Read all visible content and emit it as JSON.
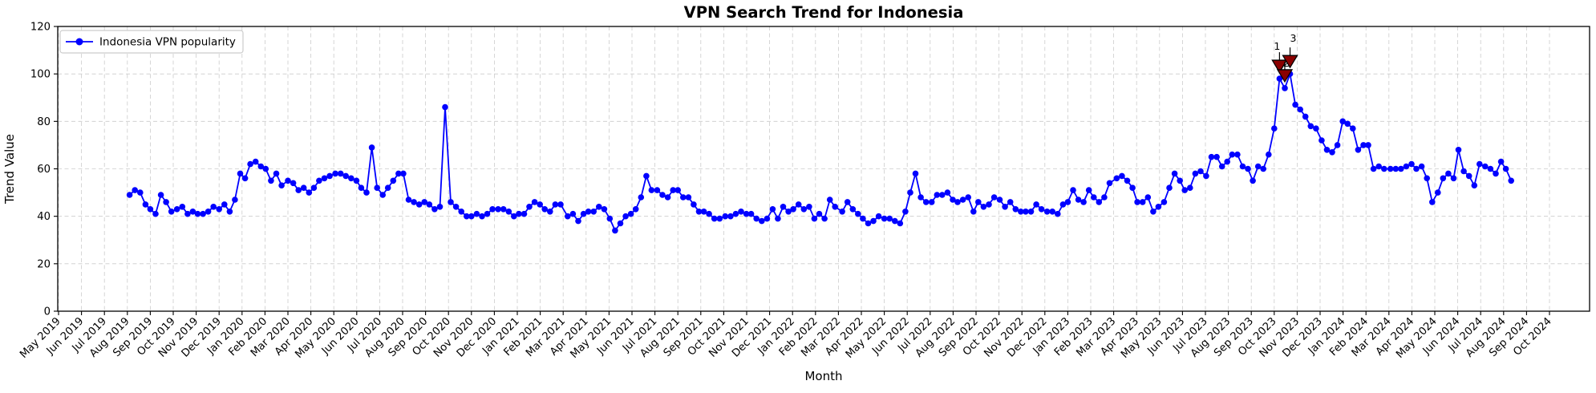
{
  "figure": {
    "title": "VPN Search Trend for Indonesia",
    "background": "#ffffff"
  },
  "chart_data": {
    "type": "line",
    "title": "VPN Search Trend for Indonesia",
    "xlabel": "Month",
    "ylabel": "Trend Value",
    "ylim": [
      0,
      120
    ],
    "y_ticks": [
      0,
      20,
      40,
      60,
      80,
      100,
      120
    ],
    "grid": true,
    "grid_style": "dashed",
    "x_tick_labels": [
      "May 2019",
      "Jun 2019",
      "Jul 2019",
      "Aug 2019",
      "Sep 2019",
      "Oct 2019",
      "Nov 2019",
      "Dec 2019",
      "Jan 2020",
      "Feb 2020",
      "Mar 2020",
      "Apr 2020",
      "May 2020",
      "Jun 2020",
      "Jul 2020",
      "Aug 2020",
      "Sep 2020",
      "Oct 2020",
      "Nov 2020",
      "Dec 2020",
      "Jan 2021",
      "Feb 2021",
      "Mar 2021",
      "Apr 2021",
      "May 2021",
      "Jun 2021",
      "Jul 2021",
      "Aug 2021",
      "Sep 2021",
      "Oct 2021",
      "Nov 2021",
      "Dec 2021",
      "Jan 2022",
      "Feb 2022",
      "Mar 2022",
      "Apr 2022",
      "May 2022",
      "Jun 2022",
      "Jul 2022",
      "Aug 2022",
      "Sep 2022",
      "Oct 2022",
      "Nov 2022",
      "Dec 2022",
      "Jan 2023",
      "Feb 2023",
      "Mar 2023",
      "Apr 2023",
      "May 2023",
      "Jun 2023",
      "Jul 2023",
      "Aug 2023",
      "Sep 2023",
      "Oct 2023",
      "Nov 2023",
      "Dec 2023",
      "Jan 2024",
      "Feb 2024",
      "Mar 2024",
      "Apr 2024",
      "May 2024",
      "Jun 2024",
      "Jul 2024",
      "Aug 2024",
      "Sep 2024",
      "Oct 2024"
    ],
    "legend": {
      "position": "upper left",
      "entries": [
        "Indonesia VPN popularity"
      ]
    },
    "series": [
      {
        "name": "Indonesia VPN popularity",
        "color": "#0000ff",
        "marker": "circle",
        "start_date": "2019-08-04",
        "interval_days": 7,
        "values": [
          49,
          51,
          50,
          45,
          43,
          41,
          49,
          46,
          42,
          43,
          44,
          41,
          42,
          41,
          41,
          42,
          44,
          43,
          45,
          42,
          47,
          58,
          56,
          62,
          63,
          61,
          60,
          55,
          58,
          53,
          55,
          54,
          51,
          52,
          50,
          52,
          55,
          56,
          57,
          58,
          58,
          57,
          56,
          55,
          52,
          50,
          69,
          52,
          49,
          52,
          55,
          58,
          58,
          47,
          46,
          45,
          46,
          45,
          43,
          44,
          86,
          46,
          44,
          42,
          40,
          40,
          41,
          40,
          41,
          43,
          43,
          43,
          42,
          40,
          41,
          41,
          44,
          46,
          45,
          43,
          42,
          45,
          45,
          40,
          41,
          38,
          41,
          42,
          42,
          44,
          43,
          39,
          34,
          37,
          40,
          41,
          43,
          48,
          57,
          51,
          51,
          49,
          48,
          51,
          51,
          48,
          48,
          45,
          42,
          42,
          41,
          39,
          39,
          40,
          40,
          41,
          42,
          41,
          41,
          39,
          38,
          39,
          43,
          39,
          44,
          42,
          43,
          45,
          43,
          44,
          39,
          41,
          39,
          47,
          44,
          42,
          46,
          43,
          41,
          39,
          37,
          38,
          40,
          39,
          39,
          38,
          37,
          42,
          50,
          58,
          48,
          46,
          46,
          49,
          49,
          50,
          47,
          46,
          47,
          48,
          42,
          46,
          44,
          45,
          48,
          47,
          44,
          46,
          43,
          42,
          42,
          42,
          45,
          43,
          42,
          42,
          41,
          45,
          46,
          51,
          47,
          46,
          51,
          48,
          46,
          48,
          54,
          56,
          57,
          55,
          52,
          46,
          46,
          48,
          42,
          44,
          46,
          52,
          58,
          55,
          51,
          52,
          58,
          59,
          57,
          65,
          65,
          61,
          63,
          66,
          66,
          61,
          60,
          55,
          61,
          60,
          66,
          77,
          98,
          94,
          100,
          87,
          85,
          82,
          78,
          77,
          72,
          68,
          67,
          70,
          80,
          79,
          77,
          68,
          70,
          70,
          60,
          61,
          60,
          60,
          60,
          60,
          61,
          62,
          60,
          61,
          56,
          46,
          50,
          56,
          58,
          56,
          68,
          59,
          57,
          53,
          62,
          61,
          60,
          58,
          63,
          60,
          55
        ]
      }
    ],
    "annotations": {
      "color": "#8b0000",
      "edge_color": "#000000",
      "marker": "triangle-down",
      "points": [
        {
          "label": "1",
          "date": "2023-10-08",
          "value": 98,
          "index": 218
        },
        {
          "label": "2",
          "date": "2023-10-15",
          "value": 94,
          "index": 219
        },
        {
          "label": "3",
          "date": "2023-10-22",
          "value": 100,
          "index": 220
        }
      ]
    },
    "colors": {
      "line": "#0000ff",
      "annotation": "#8b0000",
      "grid": "#cccccc",
      "axis": "#000000",
      "legend_edge": "#cccccc",
      "background": "#ffffff"
    }
  }
}
